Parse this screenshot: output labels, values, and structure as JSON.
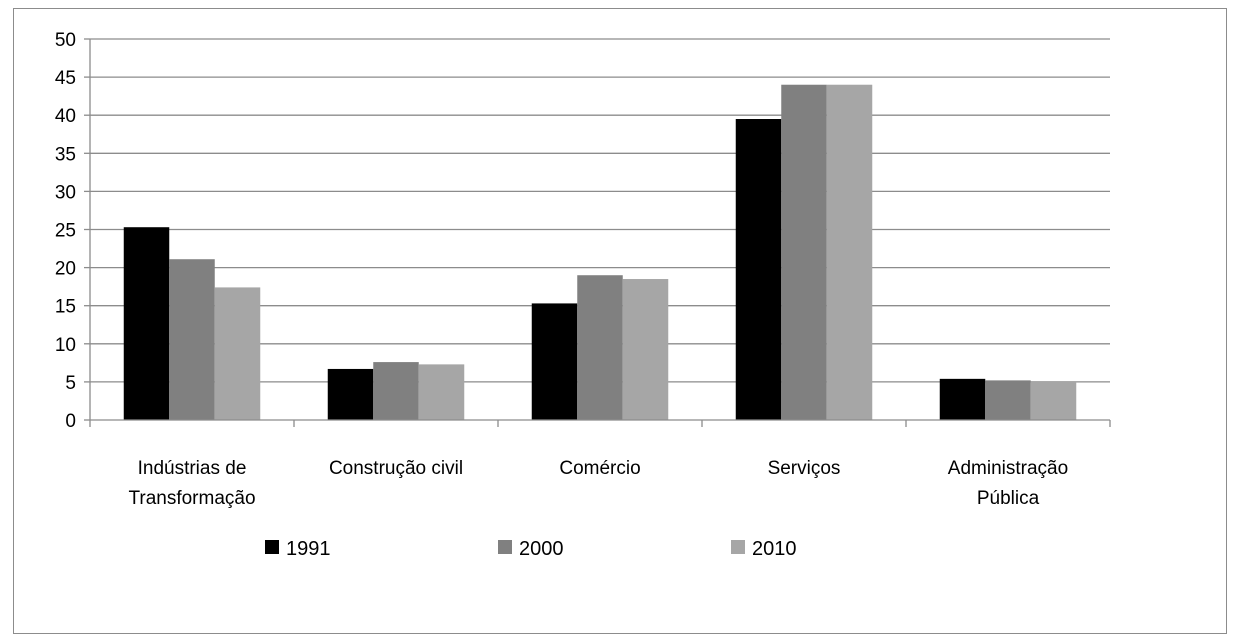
{
  "chart_data": {
    "type": "bar",
    "title": "",
    "xlabel": "",
    "ylabel": "",
    "ylim": [
      0,
      50
    ],
    "yticks": [
      0,
      5,
      10,
      15,
      20,
      25,
      30,
      35,
      40,
      45,
      50
    ],
    "grid": true,
    "legend_position": "bottom",
    "categories": [
      [
        "Indústrias de",
        "Transformação"
      ],
      [
        "Construção civil"
      ],
      [
        "Comércio"
      ],
      [
        "Serviços"
      ],
      [
        "Administração",
        "Pública"
      ]
    ],
    "series": [
      {
        "name": "1991",
        "color": "#000000",
        "values": [
          25.3,
          6.7,
          15.3,
          39.5,
          5.4
        ]
      },
      {
        "name": "2000",
        "color": "#808080",
        "values": [
          21.1,
          7.6,
          19.0,
          44.0,
          5.2
        ]
      },
      {
        "name": "2010",
        "color": "#a6a6a6",
        "values": [
          17.4,
          7.3,
          18.5,
          44.0,
          5.1
        ]
      }
    ]
  }
}
